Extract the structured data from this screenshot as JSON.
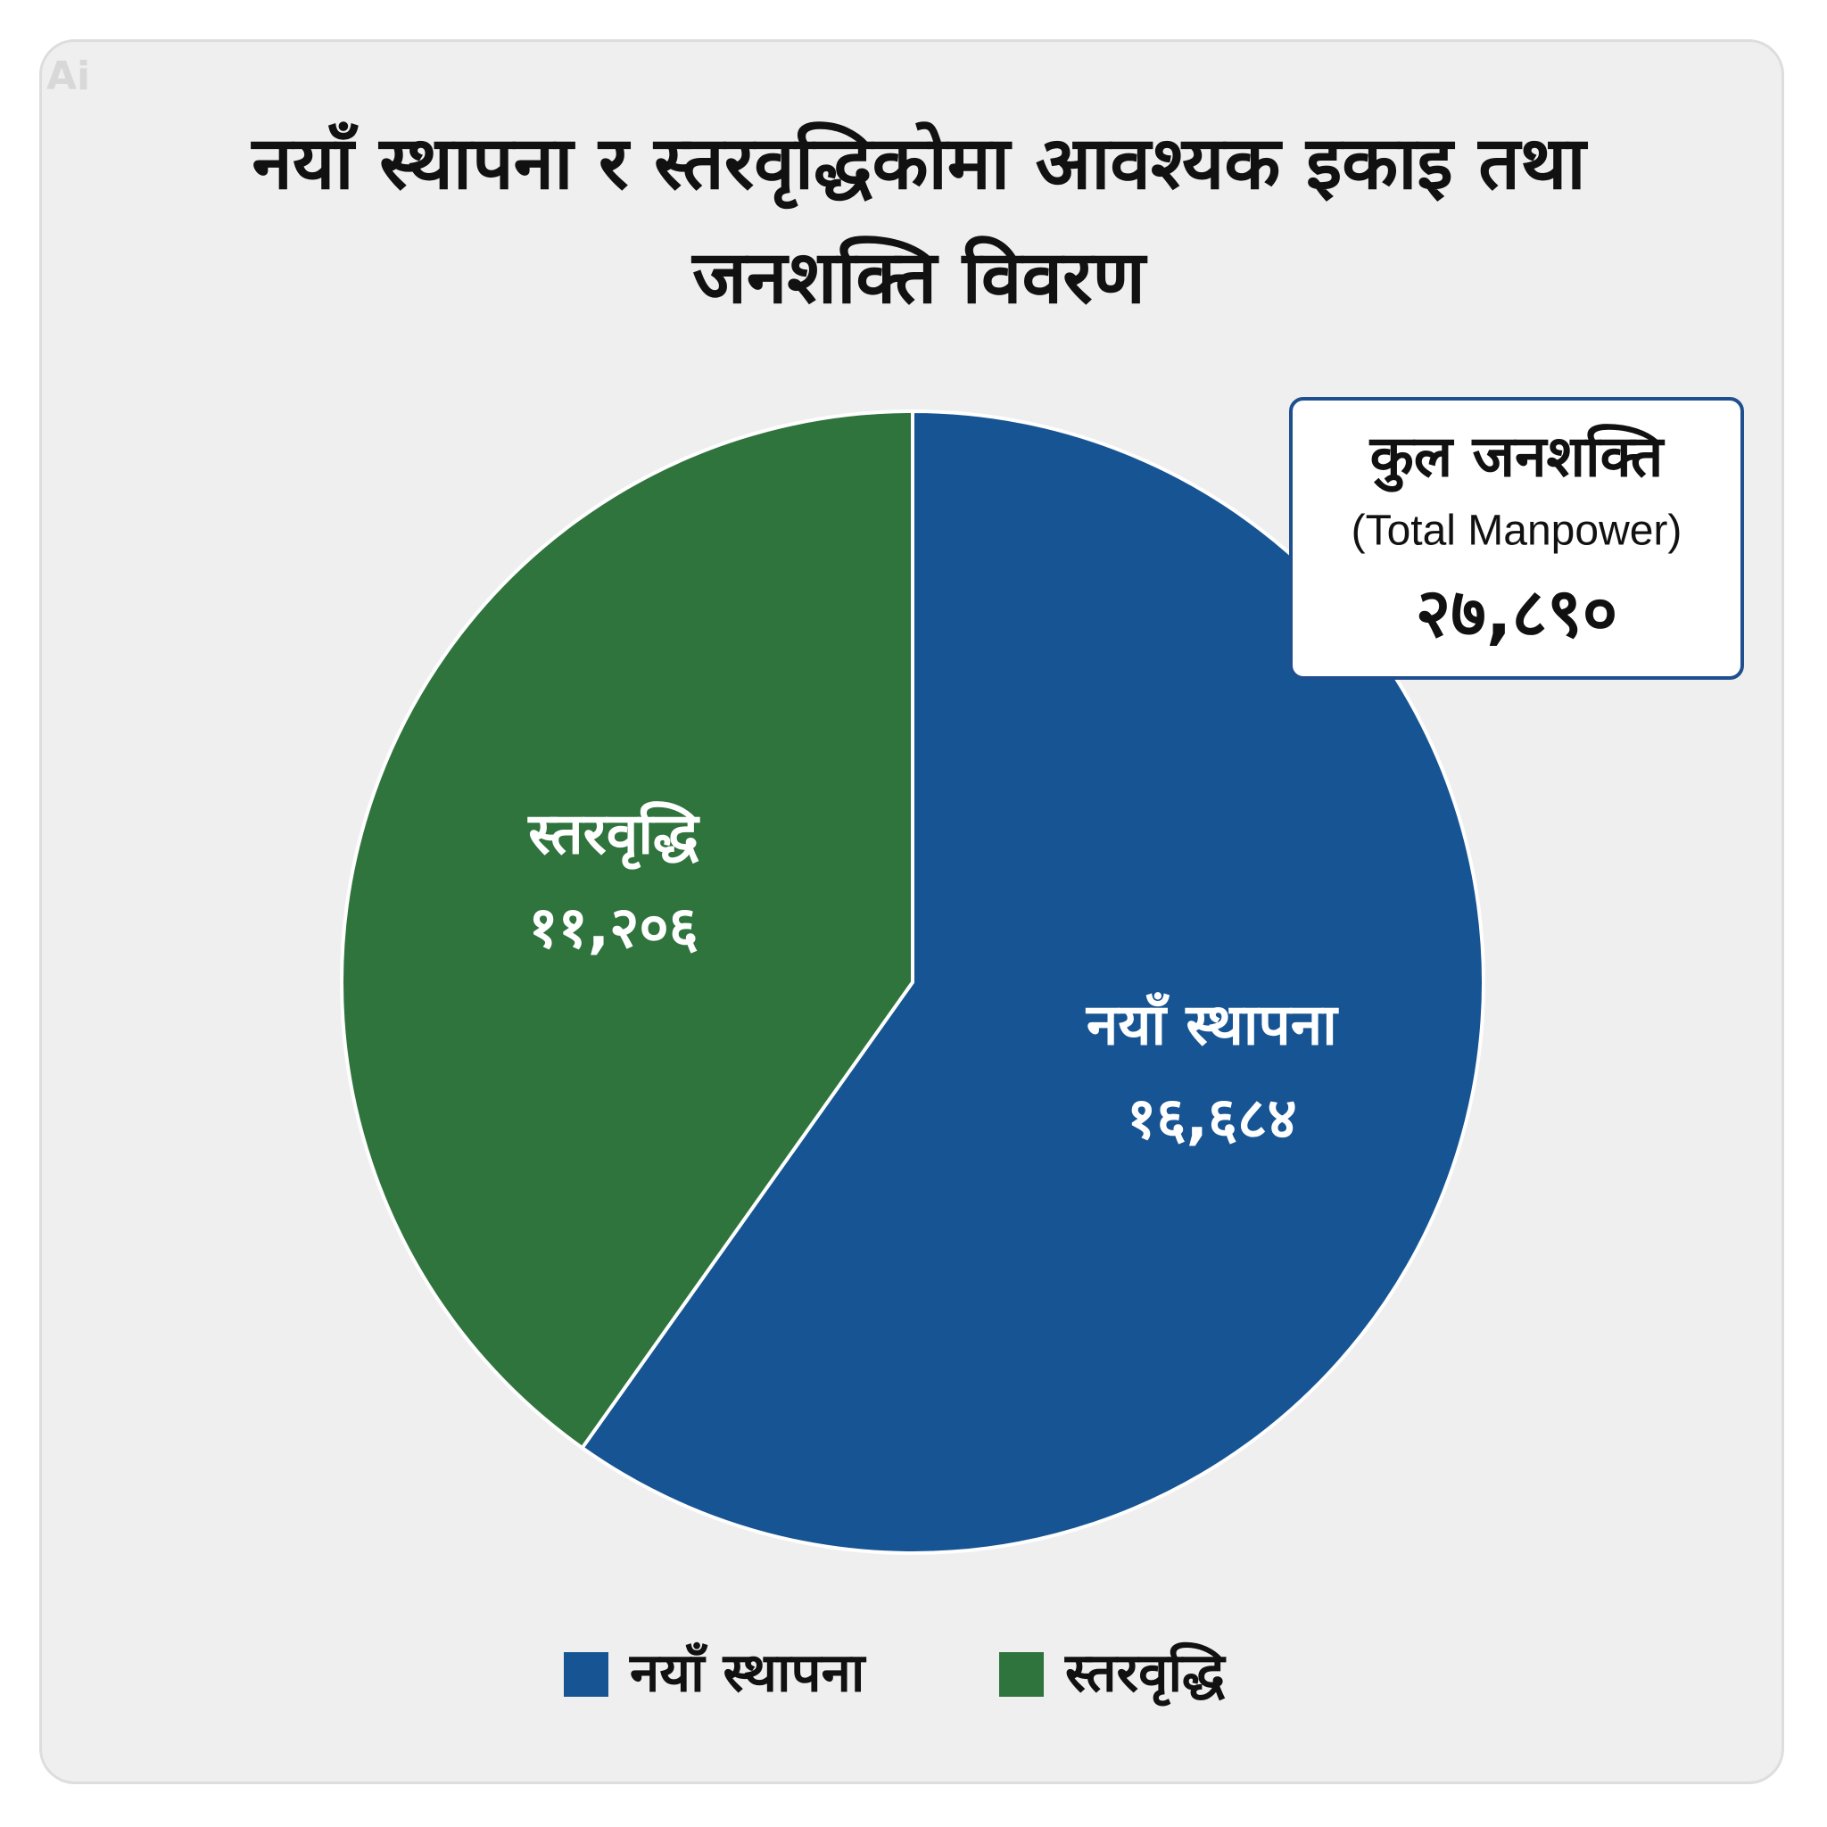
{
  "chart_data": {
    "type": "pie",
    "title": "नयाँ स्थापना र स्तरवृद्धिकोमा आवश्यक इकाइ तथा जनशक्ति विवरण",
    "categories": [
      "नयाँ स्थापना",
      "स्तरवृद्धि"
    ],
    "values": [
      16684,
      11206
    ],
    "value_labels": [
      "१६,६८४",
      "११,२०६"
    ],
    "colors": [
      "#175493",
      "#2f733d"
    ],
    "total": {
      "title": "कुल जनशक्ति",
      "subtitle": "(Total Manpower)",
      "value": 27890,
      "value_label": "२७,८९०"
    },
    "legend": "bottom"
  },
  "watermark": "Ai"
}
